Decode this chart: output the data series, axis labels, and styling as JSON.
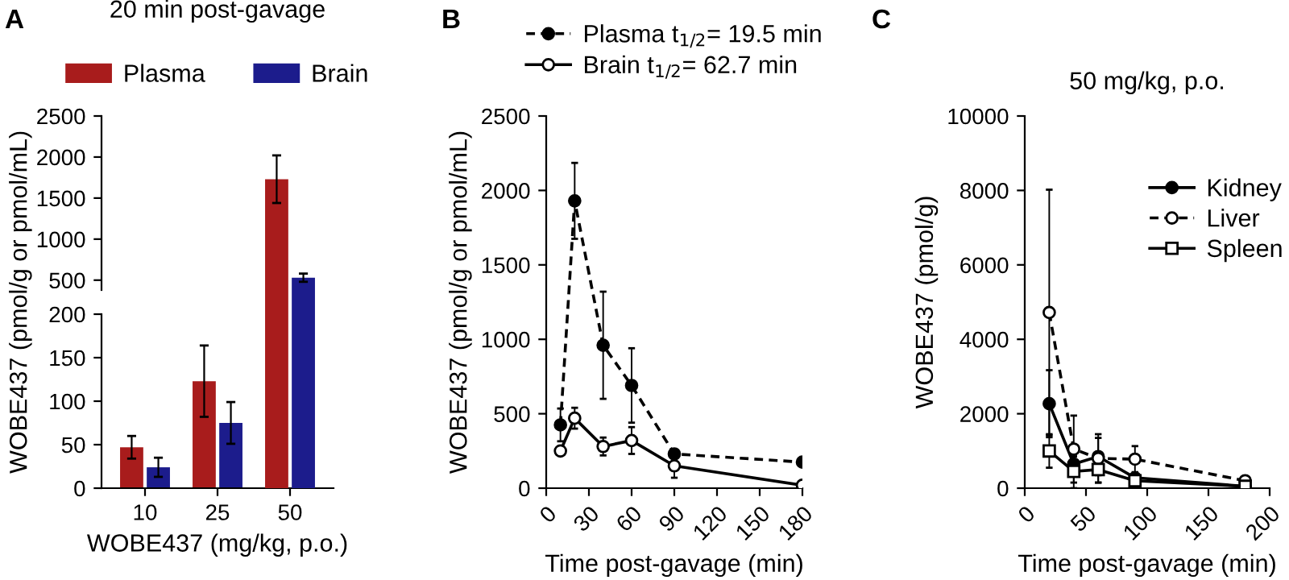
{
  "chart_data": [
    {
      "type": "bar",
      "title": "20 min post-gavage",
      "annotations": [
        "A"
      ],
      "categories": [
        "10",
        "25",
        "50"
      ],
      "series": [
        {
          "name": "Plasma",
          "color": "#a81c1c",
          "values": [
            null,
            null,
            1730
          ],
          "errors": [
            null,
            null,
            290
          ]
        },
        {
          "name": "Brain",
          "color": "#1c1c8c",
          "values": [
            null,
            null,
            530
          ],
          "errors": [
            null,
            null,
            50
          ]
        }
      ],
      "ylim": [
        380,
        2500
      ],
      "yticks": [
        500,
        1000,
        1500,
        2000,
        2500
      ],
      "legend": "top",
      "tick_labels": "y",
      "grid": false
    },
    {
      "type": "bar",
      "xlabel": "WOBE437 (mg/kg, p.o.)",
      "ylabel": "WOBE437 (pmol/g or pmol/mL)",
      "categories": [
        "10",
        "25",
        "50"
      ],
      "series": [
        {
          "color": "#a81c1c",
          "values": [
            47,
            123,
            null
          ],
          "errors": [
            13,
            41,
            null
          ]
        },
        {
          "color": "#1c1c8c",
          "values": [
            24,
            75,
            null
          ],
          "errors": [
            11,
            24,
            null
          ]
        }
      ],
      "ylim": [
        0,
        200
      ],
      "yticks": [
        0,
        50,
        100,
        150,
        200
      ],
      "grid": false
    },
    {
      "type": "line",
      "annotations": [
        "B"
      ],
      "xlabel": "Time post-gavage (min)",
      "ylabel": "WOBE437 (pmol/g or pmol/mL)",
      "series": [
        {
          "name": "Plasma t$_{1/2}$= 19.5 min",
          "color": "#000000",
          "marker": "circle",
          "line_style": "dashed",
          "x": [
            10,
            20,
            40,
            60,
            90,
            180
          ],
          "values": [
            425,
            1930,
            960,
            690,
            230,
            175
          ],
          "errors": [
            110,
            255,
            360,
            250,
            30,
            null
          ]
        },
        {
          "name": "Brain t$_{1/2}$= 62.7 min",
          "color": "#000000",
          "marker": "circle",
          "line_style": "solid",
          "x": [
            10,
            20,
            40,
            60,
            90,
            180
          ],
          "values": [
            250,
            470,
            280,
            320,
            150,
            20
          ],
          "errors": [
            null,
            70,
            60,
            90,
            80,
            null
          ]
        }
      ],
      "xlim": [
        0,
        180
      ],
      "xticks": [
        0,
        30,
        60,
        90,
        120,
        150,
        180
      ],
      "ylim": [
        0,
        2500
      ],
      "yticks": [
        0,
        500,
        1000,
        1500,
        2000,
        2500
      ],
      "legend": "top",
      "grid": false
    },
    {
      "type": "line",
      "annotations": [
        "C"
      ],
      "title": "50 mg/kg, p.o.",
      "xlabel": "Time post-gavage (min)",
      "ylabel": "WOBE437 (pmol/g)",
      "series": [
        {
          "name": "Kidney",
          "color": "#000000",
          "marker": "circle",
          "line_style": "solid",
          "x": [
            20,
            40,
            60,
            90,
            180
          ],
          "values": [
            2270,
            650,
            850,
            280,
            50
          ],
          "errors": [
            900,
            200,
            500,
            100,
            null
          ]
        },
        {
          "name": "Liver",
          "color": "#000000",
          "marker": "circle",
          "line_style": "dashed",
          "x": [
            20,
            40,
            60,
            90,
            180
          ],
          "values": [
            4720,
            1050,
            800,
            780,
            200
          ],
          "errors": [
            3300,
            900,
            650,
            350,
            null
          ]
        },
        {
          "name": "Spleen",
          "color": "#000000",
          "marker": "square",
          "line_style": "solid",
          "x": [
            20,
            40,
            60,
            90,
            180
          ],
          "values": [
            1000,
            450,
            500,
            200,
            50
          ],
          "errors": [
            450,
            450,
            350,
            100,
            null
          ]
        }
      ],
      "xlim": [
        0,
        200
      ],
      "xticks": [
        0,
        50,
        100,
        150,
        200
      ],
      "ylim": [
        0,
        10000
      ],
      "yticks": [
        0,
        2000,
        4000,
        6000,
        8000,
        10000
      ],
      "legend": "right",
      "grid": false
    }
  ]
}
